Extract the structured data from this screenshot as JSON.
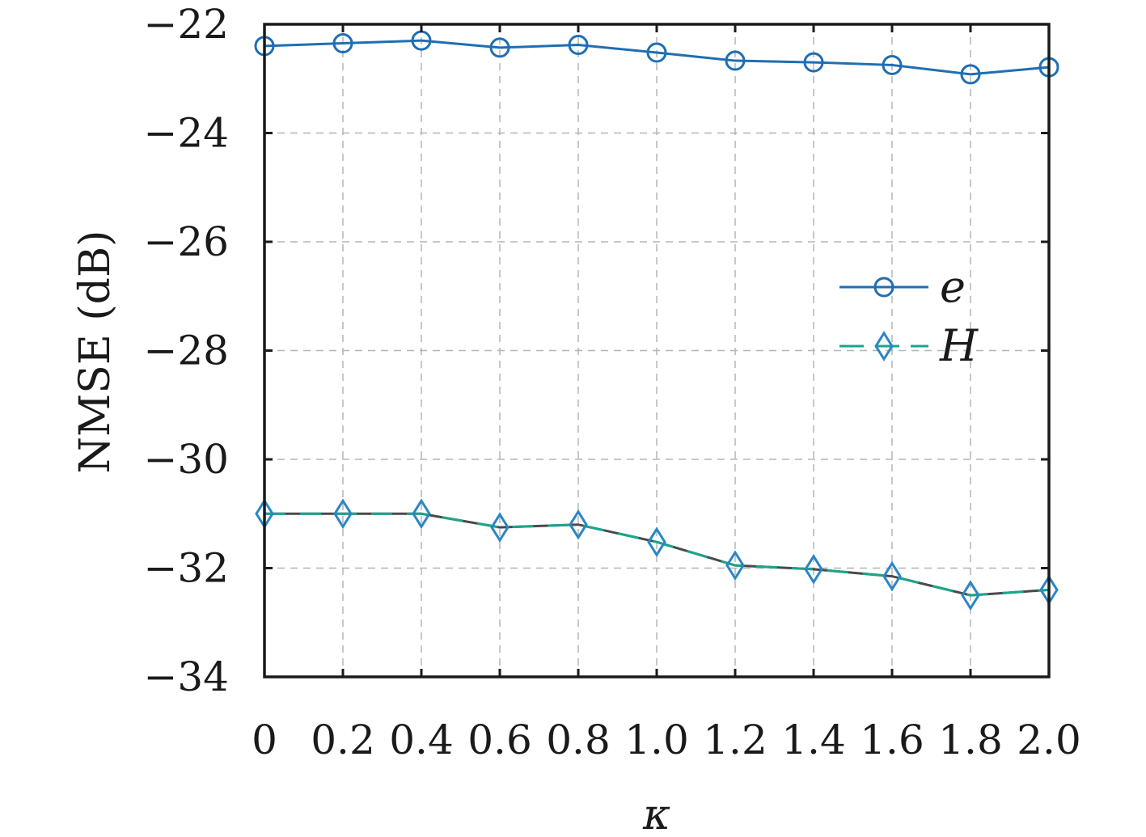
{
  "chart_data": {
    "type": "line",
    "title": "",
    "xlabel": "κ",
    "ylabel": "NMSE (dB)",
    "x": [
      0,
      0.2,
      0.4,
      0.6,
      0.8,
      1.0,
      1.2,
      1.4,
      1.6,
      1.8,
      2.0
    ],
    "x_tick_labels": [
      "0",
      "0.2",
      "0.4",
      "0.6",
      "0.8",
      "1.0",
      "1.2",
      "1.4",
      "1.6",
      "1.8",
      "2.0"
    ],
    "xlim": [
      0,
      2.0
    ],
    "ylim": [
      -34,
      -22
    ],
    "y_ticks": [
      -22,
      -24,
      -26,
      -28,
      -30,
      -32,
      -34
    ],
    "y_tick_labels": [
      "−22",
      "−24",
      "−26",
      "−28",
      "−30",
      "−32",
      "−34"
    ],
    "grid": true,
    "legend_position": "right",
    "series": [
      {
        "name": "e",
        "marker": "circle",
        "line_style": "solid",
        "color": "#1f6eb4",
        "values": [
          -22.4,
          -22.35,
          -22.3,
          -22.43,
          -22.38,
          -22.52,
          -22.67,
          -22.7,
          -22.75,
          -22.92,
          -22.79
        ]
      },
      {
        "name": "H",
        "marker": "diamond",
        "line_style": "dashed",
        "color": "#2a86c4",
        "values": [
          -31.0,
          -31.0,
          -31.0,
          -31.25,
          -31.2,
          -31.52,
          -31.95,
          -32.02,
          -32.15,
          -32.5,
          -32.4
        ]
      }
    ]
  }
}
